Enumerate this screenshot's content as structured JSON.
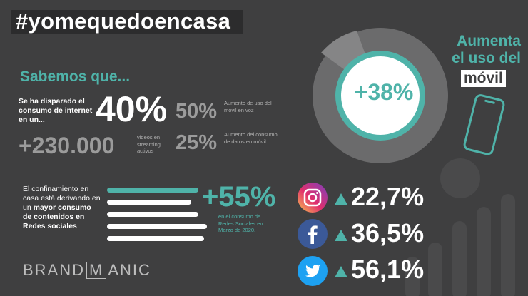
{
  "header": {
    "hashtag": "#yomequedoencasa"
  },
  "intro": {
    "heading": "Sabemos que...",
    "consumo_label": "Se ha disparado el consumo de internet en un...",
    "big_percent": "40%",
    "voz_percent": "50%",
    "voz_desc": "Aumento de uso del móvil en voz",
    "videos_value": "+230.000",
    "videos_desc": "videos en streaming activos",
    "datos_percent": "25%",
    "datos_desc": "Aumento del consumo de datos en móvil"
  },
  "social": {
    "text_plain": "El confinamiento en casa está derivando en un",
    "text_bold": "mayor consumo de contenidos en Redes sociales",
    "big_percent": "+55%",
    "desc": "en el consumo de Redes Sociales en Marzo de 2020.",
    "networks": [
      {
        "name": "instagram",
        "value": "22,7%",
        "icon": "instagram-icon"
      },
      {
        "name": "facebook",
        "value": "36,5%",
        "icon": "facebook-icon"
      },
      {
        "name": "twitter",
        "value": "56,1%",
        "icon": "twitter-icon"
      }
    ]
  },
  "mobile": {
    "title_line1": "Aumenta",
    "title_line2": "el uso del",
    "title_highlight": "móvil",
    "percent": "+38%"
  },
  "brand": {
    "left": "BRAND",
    "middle": "M",
    "right": "ANIC"
  },
  "colors": {
    "background": "#3f3f40",
    "accent": "#4fb3a9",
    "text": "#ffffff",
    "muted": "#9b9b9b",
    "dark_box": "#2c2c2d"
  }
}
